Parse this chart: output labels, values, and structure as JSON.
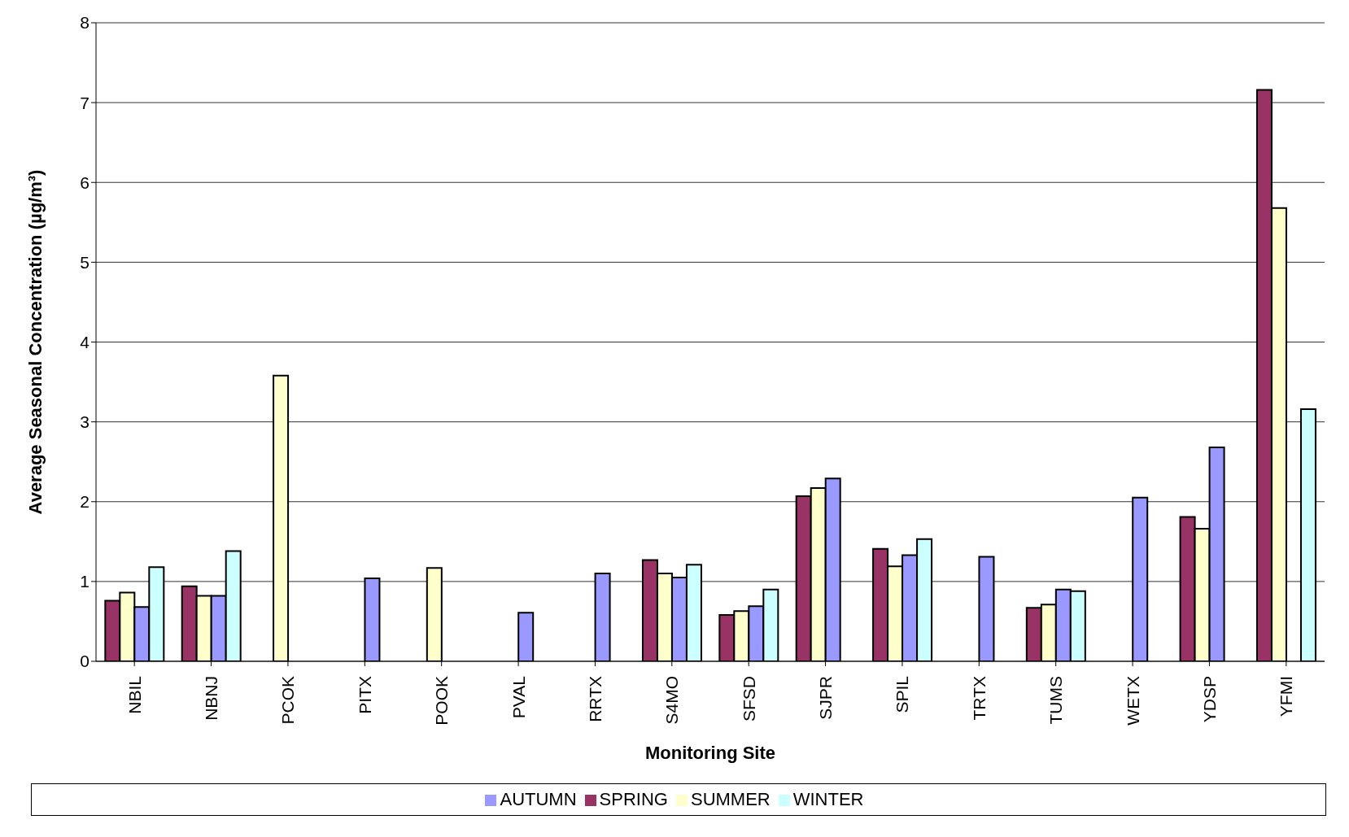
{
  "chart_data": {
    "type": "bar",
    "xlabel": "Monitoring Site",
    "ylabel": "Average Seasonal Concentration (µg/m³)",
    "categories": [
      "NBIL",
      "NBNJ",
      "PCOK",
      "PITX",
      "POOK",
      "PVAL",
      "RRTX",
      "S4MO",
      "SFSD",
      "SJPR",
      "SPIL",
      "TRTX",
      "TUMS",
      "WETX",
      "YDSP",
      "YFMI"
    ],
    "series": [
      {
        "name": "SPRING",
        "color": "#993366",
        "values": [
          0.76,
          0.94,
          null,
          null,
          null,
          null,
          null,
          1.27,
          0.58,
          2.07,
          1.41,
          null,
          0.67,
          null,
          1.81,
          7.16
        ]
      },
      {
        "name": "SUMMER",
        "color": "#ffffcc",
        "values": [
          0.86,
          0.82,
          3.58,
          null,
          1.17,
          null,
          null,
          1.1,
          0.63,
          2.17,
          1.19,
          null,
          0.71,
          null,
          1.66,
          5.68
        ]
      },
      {
        "name": "AUTUMN",
        "color": "#9999ff",
        "values": [
          0.68,
          0.82,
          null,
          1.04,
          null,
          0.61,
          1.1,
          1.05,
          0.69,
          2.29,
          1.33,
          1.31,
          0.9,
          2.05,
          2.68,
          null
        ]
      },
      {
        "name": "WINTER",
        "color": "#ccffff",
        "values": [
          1.18,
          1.38,
          null,
          null,
          null,
          null,
          null,
          1.21,
          0.9,
          null,
          1.53,
          null,
          0.88,
          null,
          null,
          3.16
        ]
      }
    ],
    "ylim": [
      0,
      8
    ],
    "yticks": [
      0,
      1,
      2,
      3,
      4,
      5,
      6,
      7,
      8
    ],
    "grid": "y",
    "legend": "bottom"
  }
}
